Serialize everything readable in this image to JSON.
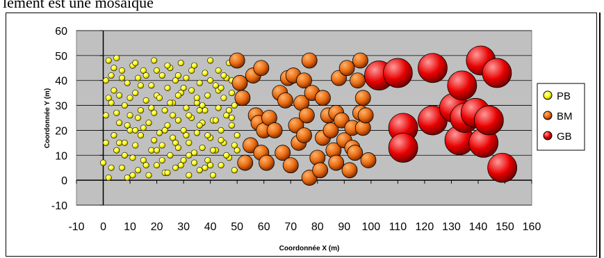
{
  "page": {
    "top_text": "lement est une mosaïque"
  },
  "chart_data": {
    "type": "scatter",
    "xlabel": "Coordonnée X (m)",
    "ylabel": "Coordonnée Y (m)",
    "xlim": [
      -10,
      160
    ],
    "ylim": [
      -10,
      60
    ],
    "x_ticks": [
      "-10",
      "0",
      "10",
      "20",
      "30",
      "40",
      "50",
      "60",
      "70",
      "80",
      "90",
      "100",
      "110",
      "120",
      "130",
      "140",
      "150",
      "160"
    ],
    "y_ticks": [
      "60",
      "50",
      "40",
      "30",
      "20",
      "10",
      "0",
      "-10"
    ],
    "grid": true,
    "legend_position": "right",
    "plot_background": "#c0c0c0",
    "series": [
      {
        "name": "PB",
        "color": "#ffff00",
        "points": [
          [
            0,
            7
          ],
          [
            1,
            26
          ],
          [
            1,
            40
          ],
          [
            2,
            1
          ],
          [
            2,
            48
          ],
          [
            3,
            31
          ],
          [
            3,
            42
          ],
          [
            4,
            18
          ],
          [
            4,
            36
          ],
          [
            5,
            12
          ],
          [
            5,
            49
          ],
          [
            6,
            23
          ],
          [
            6,
            34
          ],
          [
            7,
            5
          ],
          [
            7,
            44
          ],
          [
            8,
            15
          ],
          [
            8,
            30
          ],
          [
            9,
            39
          ],
          [
            9,
            1
          ],
          [
            10,
            20
          ],
          [
            10,
            26
          ],
          [
            11,
            46
          ],
          [
            11,
            9
          ],
          [
            12,
            35
          ],
          [
            12,
            14
          ],
          [
            13,
            41
          ],
          [
            13,
            4
          ],
          [
            14,
            28
          ],
          [
            14,
            18
          ],
          [
            15,
            44
          ],
          [
            15,
            8
          ],
          [
            16,
            32
          ],
          [
            17,
            23
          ],
          [
            17,
            2
          ],
          [
            18,
            38
          ],
          [
            18,
            12
          ],
          [
            19,
            27
          ],
          [
            19,
            48
          ],
          [
            20,
            6
          ],
          [
            20,
            34
          ],
          [
            21,
            19
          ],
          [
            22,
            42
          ],
          [
            22,
            14
          ],
          [
            23,
            28
          ],
          [
            23,
            3
          ],
          [
            24,
            37
          ],
          [
            24,
            22
          ],
          [
            25,
            10
          ],
          [
            25,
            45
          ],
          [
            26,
            31
          ],
          [
            26,
            17
          ],
          [
            27,
            5
          ],
          [
            27,
            40
          ],
          [
            28,
            24
          ],
          [
            28,
            13
          ],
          [
            29,
            35
          ],
          [
            29,
            47
          ],
          [
            30,
            20
          ],
          [
            30,
            8
          ],
          [
            31,
            29
          ],
          [
            31,
            41
          ],
          [
            32,
            15
          ],
          [
            32,
            2
          ],
          [
            33,
            36
          ],
          [
            33,
            25
          ],
          [
            34,
            11
          ],
          [
            34,
            46
          ],
          [
            35,
            31
          ],
          [
            35,
            19
          ],
          [
            36,
            4
          ],
          [
            36,
            39
          ],
          [
            37,
            23
          ],
          [
            37,
            13
          ],
          [
            38,
            43
          ],
          [
            38,
            28
          ],
          [
            39,
            8
          ],
          [
            39,
            34
          ],
          [
            40,
            17
          ],
          [
            40,
            48
          ],
          [
            41,
            24
          ],
          [
            41,
            2
          ],
          [
            42,
            38
          ],
          [
            42,
            12
          ],
          [
            43,
            29
          ],
          [
            43,
            44
          ],
          [
            44,
            20
          ],
          [
            44,
            6
          ],
          [
            45,
            33
          ],
          [
            45,
            15
          ],
          [
            46,
            41
          ],
          [
            46,
            26
          ],
          [
            47,
            9
          ],
          [
            47,
            47
          ],
          [
            48,
            22
          ],
          [
            48,
            35
          ],
          [
            49,
            4
          ],
          [
            49,
            30
          ],
          [
            50,
            18
          ],
          [
            50,
            12
          ],
          [
            2,
            33
          ],
          [
            3,
            5
          ],
          [
            5,
            27
          ],
          [
            6,
            15
          ],
          [
            7,
            41
          ],
          [
            9,
            22
          ],
          [
            10,
            33
          ],
          [
            11,
            2
          ],
          [
            12,
            47
          ],
          [
            13,
            25
          ],
          [
            14,
            38
          ],
          [
            15,
            21
          ],
          [
            16,
            6
          ],
          [
            18,
            29
          ],
          [
            19,
            16
          ],
          [
            20,
            44
          ],
          [
            21,
            33
          ],
          [
            22,
            8
          ],
          [
            23,
            20
          ],
          [
            24,
            3
          ],
          [
            25,
            31
          ],
          [
            26,
            26
          ],
          [
            27,
            15
          ],
          [
            28,
            42
          ],
          [
            29,
            6
          ],
          [
            30,
            37
          ],
          [
            31,
            18
          ],
          [
            32,
            26
          ],
          [
            33,
            44
          ],
          [
            34,
            7
          ],
          [
            35,
            33
          ],
          [
            36,
            22
          ],
          [
            37,
            30
          ],
          [
            38,
            5
          ],
          [
            39,
            18
          ],
          [
            40,
            40
          ],
          [
            41,
            12
          ],
          [
            42,
            24
          ],
          [
            43,
            36
          ],
          [
            44,
            16
          ],
          [
            45,
            42
          ],
          [
            46,
            10
          ],
          [
            47,
            28
          ],
          [
            48,
            40
          ],
          [
            49,
            14
          ],
          [
            1,
            15
          ],
          [
            4,
            45
          ],
          [
            8,
            10
          ],
          [
            12,
            20
          ],
          [
            16,
            42
          ],
          [
            20,
            12
          ],
          [
            24,
            46
          ],
          [
            28,
            34
          ],
          [
            32,
            10
          ],
          [
            36,
            28
          ],
          [
            40,
            6
          ],
          [
            44,
            37
          ],
          [
            48,
            25
          ]
        ]
      },
      {
        "name": "BM",
        "color": "#e86a10",
        "points": [
          [
            50,
            48
          ],
          [
            51,
            39
          ],
          [
            52,
            33
          ],
          [
            53,
            7
          ],
          [
            55,
            14
          ],
          [
            56,
            42
          ],
          [
            57,
            26
          ],
          [
            58,
            23
          ],
          [
            59,
            45
          ],
          [
            59,
            11
          ],
          [
            60,
            20
          ],
          [
            61,
            7
          ],
          [
            62,
            25
          ],
          [
            64,
            20
          ],
          [
            66,
            35
          ],
          [
            67,
            11
          ],
          [
            68,
            32
          ],
          [
            69,
            41
          ],
          [
            70,
            6
          ],
          [
            71,
            42
          ],
          [
            72,
            22
          ],
          [
            73,
            15
          ],
          [
            74,
            31
          ],
          [
            75,
            18
          ],
          [
            75,
            40
          ],
          [
            76,
            26
          ],
          [
            77,
            48
          ],
          [
            77,
            1
          ],
          [
            78,
            35
          ],
          [
            80,
            9
          ],
          [
            81,
            4
          ],
          [
            82,
            17
          ],
          [
            82,
            33
          ],
          [
            84,
            26
          ],
          [
            85,
            20
          ],
          [
            86,
            12
          ],
          [
            87,
            7
          ],
          [
            87,
            27
          ],
          [
            88,
            41
          ],
          [
            89,
            24
          ],
          [
            90,
            16
          ],
          [
            91,
            45
          ],
          [
            92,
            4
          ],
          [
            93,
            21
          ],
          [
            93,
            13
          ],
          [
            94,
            11
          ],
          [
            95,
            40
          ],
          [
            96,
            48
          ],
          [
            96,
            27
          ],
          [
            97,
            33
          ],
          [
            97,
            21
          ],
          [
            98,
            26
          ],
          [
            99,
            8
          ]
        ]
      },
      {
        "name": "GB",
        "color": "#e80000",
        "points": [
          [
            103,
            42
          ],
          [
            110,
            43
          ],
          [
            112,
            21
          ],
          [
            112,
            13
          ],
          [
            123,
            45
          ],
          [
            123,
            24
          ],
          [
            131,
            29
          ],
          [
            133,
            16
          ],
          [
            134,
            38
          ],
          [
            135,
            25
          ],
          [
            139,
            27
          ],
          [
            141,
            48
          ],
          [
            142,
            15
          ],
          [
            144,
            24
          ],
          [
            147,
            43
          ],
          [
            149,
            5
          ]
        ]
      }
    ]
  }
}
